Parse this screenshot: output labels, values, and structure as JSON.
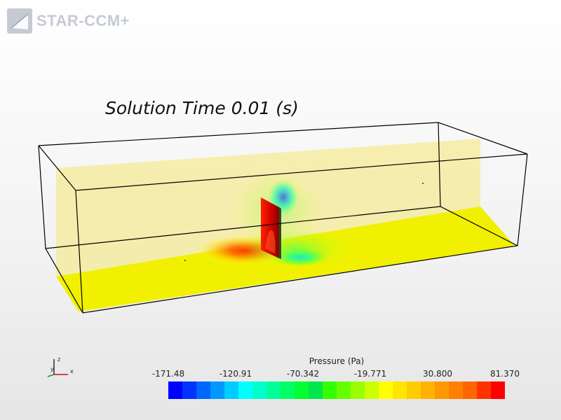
{
  "app": {
    "logo_text": "STAR-CCM+",
    "logo_mark": "star-ccm-logo-icon"
  },
  "scene": {
    "title": "Solution Time 0.01 (s)"
  },
  "legend": {
    "title": "Pressure (Pa)",
    "ticks": [
      "-171.48",
      "-120.91",
      "-70.342",
      "-19.771",
      "30.800",
      "81.370"
    ],
    "colors": [
      "#0000ff",
      "#0033ff",
      "#0066ff",
      "#0099ff",
      "#00ccff",
      "#00ffff",
      "#00ffcc",
      "#00ff99",
      "#00ff66",
      "#00ff33",
      "#00e64d",
      "#33ff00",
      "#66ff00",
      "#99ff00",
      "#ccff00",
      "#ffff00",
      "#ffe600",
      "#ffcc00",
      "#ffb300",
      "#ff9900",
      "#ff8000",
      "#ff6600",
      "#ff3300",
      "#ff0000"
    ]
  },
  "axes": {
    "x_label": "x",
    "y_label": "y",
    "z_label": "z"
  }
}
